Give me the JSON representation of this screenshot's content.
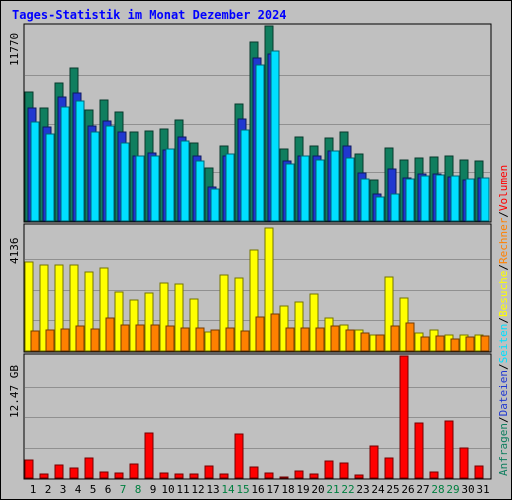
{
  "title": "Tages-Statistik im Monat Dezember 2024",
  "chart_data": [
    {
      "type": "bar",
      "name": "top",
      "ymax_label": "11770",
      "ymax": 11770,
      "categories": [
        "1",
        "2",
        "3",
        "4",
        "5",
        "6",
        "7",
        "8",
        "9",
        "10",
        "11",
        "12",
        "13",
        "14",
        "15",
        "16",
        "17",
        "18",
        "19",
        "20",
        "21",
        "22",
        "23",
        "24",
        "25",
        "26",
        "27",
        "28",
        "29",
        "30",
        "31"
      ],
      "series": [
        {
          "name": "Anfragen",
          "color": "#107e5f",
          "values": [
            7800,
            6850,
            8300,
            9250,
            6700,
            7300,
            6550,
            5400,
            5450,
            5550,
            6100,
            4700,
            3200,
            4550,
            7050,
            10800,
            11770,
            4350,
            5050,
            4500,
            5000,
            5350,
            4050,
            2500,
            4400,
            3700,
            3800,
            3850,
            3950,
            3700,
            3600
          ]
        },
        {
          "name": "Dateien",
          "color": "#2038d0",
          "values": [
            6800,
            5700,
            7500,
            7700,
            5750,
            6050,
            5400,
            3950,
            4100,
            4300,
            5100,
            3950,
            2050,
            3950,
            6150,
            9850,
            10050,
            3650,
            3950,
            3900,
            4200,
            4500,
            2900,
            1600,
            3150,
            2600,
            2850,
            2850,
            2650,
            2500,
            2600
          ]
        },
        {
          "name": "Seiten",
          "color": "#00e0ff",
          "values": [
            5950,
            5250,
            6900,
            7250,
            5350,
            5750,
            4700,
            3950,
            3950,
            4350,
            4850,
            3650,
            1950,
            4050,
            5500,
            9400,
            10250,
            3450,
            3950,
            3700,
            4200,
            3800,
            2550,
            1450,
            1650,
            2550,
            2700,
            2800,
            2700,
            2550,
            2600
          ]
        }
      ]
    },
    {
      "type": "bar",
      "name": "middle",
      "ymax_label": "4136",
      "ymax": 4136,
      "categories": [
        "1",
        "2",
        "3",
        "4",
        "5",
        "6",
        "7",
        "8",
        "9",
        "10",
        "11",
        "12",
        "13",
        "14",
        "15",
        "16",
        "17",
        "18",
        "19",
        "20",
        "21",
        "22",
        "23",
        "24",
        "25",
        "26",
        "27",
        "28",
        "29",
        "30",
        "31"
      ],
      "series": [
        {
          "name": "Besuche",
          "color": "#ffff00",
          "values": [
            3000,
            2900,
            2900,
            2900,
            2650,
            2800,
            2000,
            1700,
            1960,
            2300,
            2250,
            1750,
            650,
            2550,
            2460,
            3400,
            4136,
            1500,
            1650,
            1920,
            1100,
            880,
            700,
            550,
            2500,
            1780,
            600,
            700,
            550,
            550,
            550
          ]
        },
        {
          "name": "Rechner",
          "color": "#ff8000",
          "values": [
            660,
            700,
            750,
            850,
            750,
            1100,
            880,
            880,
            880,
            850,
            790,
            770,
            700,
            790,
            660,
            1150,
            1250,
            790,
            790,
            790,
            830,
            700,
            600,
            550,
            830,
            950,
            480,
            520,
            420,
            480,
            500
          ]
        }
      ]
    },
    {
      "type": "bar",
      "name": "bottom",
      "ymax_label": "12.47 GB",
      "ymax": 12.47,
      "categories": [
        "1",
        "2",
        "3",
        "4",
        "5",
        "6",
        "7",
        "8",
        "9",
        "10",
        "11",
        "12",
        "13",
        "14",
        "15",
        "16",
        "17",
        "18",
        "19",
        "20",
        "21",
        "22",
        "23",
        "24",
        "25",
        "26",
        "27",
        "28",
        "29",
        "30",
        "31"
      ],
      "series": [
        {
          "name": "Volumen",
          "color": "#ff0000",
          "values": [
            1.8,
            0.4,
            1.3,
            1.0,
            2.0,
            0.6,
            0.5,
            1.4,
            4.6,
            0.5,
            0.4,
            0.4,
            1.2,
            0.4,
            4.5,
            1.1,
            0.5,
            0.1,
            0.7,
            0.4,
            1.7,
            1.5,
            0.3,
            3.3,
            2.0,
            12.47,
            5.6,
            0.6,
            5.8,
            3.1,
            1.2
          ]
        }
      ]
    }
  ],
  "legend": [
    {
      "label": "Anfragen",
      "color": "#107e5f"
    },
    {
      "label": "/",
      "color": "#000000"
    },
    {
      "label": "Dateien",
      "color": "#2038d0"
    },
    {
      "label": "/",
      "color": "#000000"
    },
    {
      "label": "Seiten",
      "color": "#00e0ff"
    },
    {
      "label": "/",
      "color": "#000000"
    },
    {
      "label": "Besuche",
      "color": "#ffff00"
    },
    {
      "label": "/",
      "color": "#000000"
    },
    {
      "label": "Rechner",
      "color": "#ff8000"
    },
    {
      "label": "/",
      "color": "#000000"
    },
    {
      "label": "Volumen",
      "color": "#ff0000"
    }
  ],
  "weekend_days": [
    "7",
    "8",
    "14",
    "15",
    "21",
    "22",
    "28",
    "29"
  ],
  "colors": {
    "background": "#c0c0c0",
    "weekday": "#000000",
    "weekend": "#008040",
    "title": "#0000ff"
  }
}
